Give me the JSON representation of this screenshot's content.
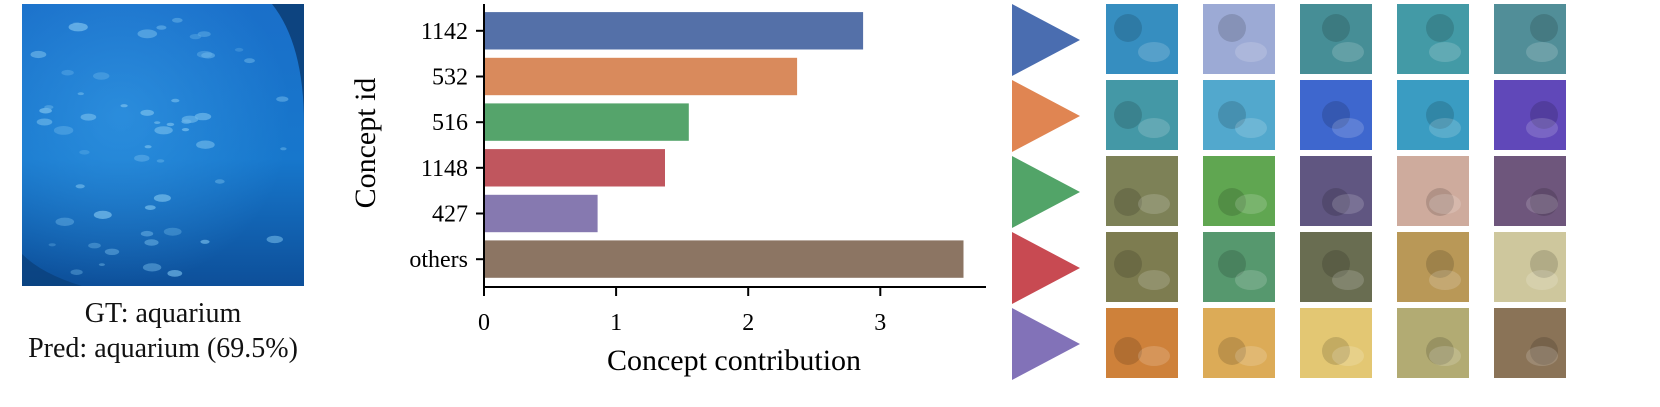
{
  "input_image": {
    "gt_prefix": "GT:",
    "gt": "aquarium",
    "pred_prefix": "Pred:",
    "pred": "aquarium",
    "pred_confidence": "(69.5%)"
  },
  "chart_data": {
    "type": "bar",
    "orientation": "horizontal",
    "categories": [
      "1142",
      "532",
      "516",
      "1148",
      "427",
      "others"
    ],
    "values": [
      2.87,
      2.37,
      1.55,
      1.37,
      0.86,
      3.63
    ],
    "colors": [
      "#5470a8",
      "#d98a5c",
      "#55a46b",
      "#c0565e",
      "#8679b0",
      "#8c7563"
    ],
    "xlabel": "Concept contribution",
    "ylabel": "Concept id",
    "xticks": [
      0,
      1,
      2,
      3
    ],
    "xlim": [
      0,
      3.8
    ],
    "grid": false,
    "legend": "none"
  },
  "concept_examples": [
    {
      "concept": "1142",
      "color": "#4a6db0",
      "thumbnails": [
        "aquarium-tunnel-silhouettes",
        "fish-school-closeup",
        "underwater-tunnel",
        "turtle-in-tank",
        "rocky-tank"
      ]
    },
    {
      "concept": "532",
      "color": "#e08552",
      "thumbnails": [
        "aquarium-visitors",
        "diver-tank",
        "blue-lit-tank",
        "coral-tank",
        "purple-lit-visitor"
      ]
    },
    {
      "concept": "516",
      "color": "#52a468",
      "thumbnails": [
        "coral-reef",
        "green-seaweed",
        "purple-coral",
        "pink-coral",
        "purple-anemone"
      ]
    },
    {
      "concept": "1148",
      "color": "#c84a52",
      "thumbnails": [
        "brown-coral",
        "green-plants-tank",
        "brown-coral-dark",
        "orange-anemone",
        "pale-sand"
      ]
    },
    {
      "concept": "427",
      "color": "#8272b8",
      "thumbnails": [
        "pizza-slice",
        "red-pepper-dish",
        "potato-dish",
        "cucumber-slices",
        "dark-food"
      ]
    }
  ]
}
